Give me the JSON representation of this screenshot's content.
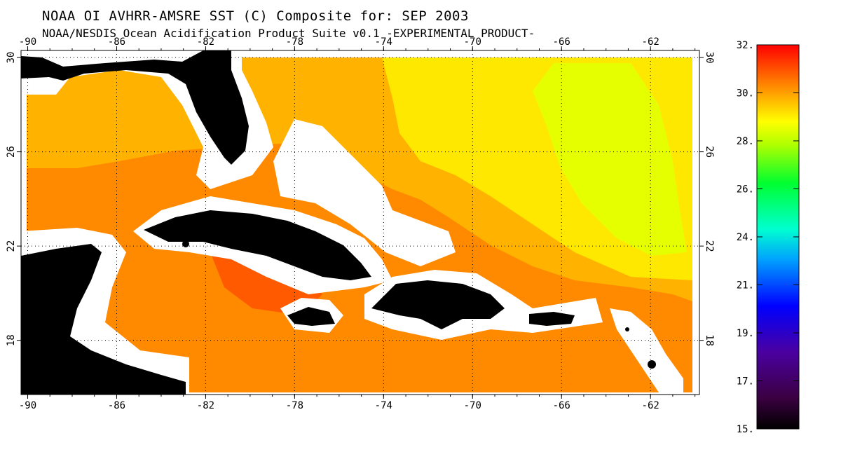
{
  "header": {
    "title": "NOAA OI AVHRR-AMSRE SST (C) Composite for: SEP 2003",
    "subtitle": "NOAA/NESDIS Ocean Acidification Product Suite  v0.1 -EXPERIMENTAL PRODUCT-"
  },
  "map": {
    "lon_ticks": [
      "-90",
      "-86",
      "-82",
      "-78",
      "-74",
      "-70",
      "-66",
      "-62"
    ],
    "lon_values": [
      -90,
      -86,
      -82,
      -78,
      -74,
      -70,
      -66,
      -62
    ],
    "lat_ticks": [
      "30",
      "26",
      "22",
      "18"
    ],
    "lat_values": [
      30,
      26,
      22,
      18
    ],
    "land_color": "#000000",
    "coast_mask_color": "#ffffff",
    "sst_colors": {
      "warm": "#ff8a00",
      "mid": "#ffb200",
      "cool": "#ffe800",
      "cooler": "#e6ff00",
      "hot": "#ff5a00"
    },
    "grid": "dotted"
  },
  "colorbar": {
    "labels": [
      "32.",
      "30.",
      "28.",
      "26.",
      "24.",
      "21.",
      "19.",
      "17.",
      "15."
    ],
    "values": [
      32,
      30,
      28,
      26,
      24,
      21,
      19,
      17,
      15
    ]
  }
}
